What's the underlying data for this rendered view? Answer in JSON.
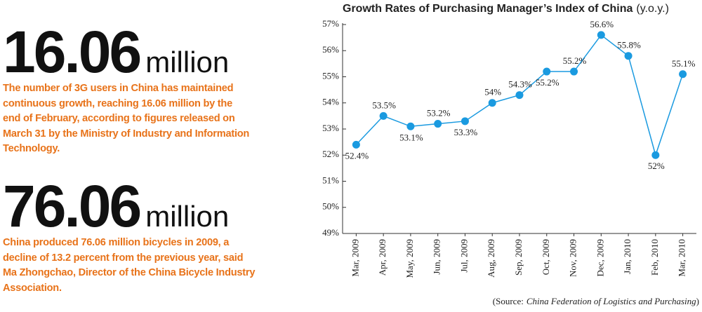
{
  "stats": [
    {
      "number": "16.06",
      "unit": "million",
      "lines": [
        "The number of 3G users in China has maintained",
        "continuous growth, reaching 16.06 million by the",
        "end of February, according to figures released on",
        "March 31 by the Ministry of Industry and Information",
        "Technology."
      ]
    },
    {
      "number": "76.06",
      "unit": "million",
      "lines": [
        "China produced 76.06 million bicycles in 2009, a",
        "decline of 13.2 percent from the previous year, said",
        "Ma Zhongchao, Director of the China Bicycle Industry",
        "Association."
      ]
    }
  ],
  "chart_data": {
    "type": "line",
    "title": "Growth Rates of Purchasing Manager’s Index of China",
    "subtitle": "(y.o.y.)",
    "categories": [
      "Mar, 2009",
      "Apr, 2009",
      "May, 2009",
      "Jun, 2009",
      "Jul, 2009",
      "Aug, 2009",
      "Sep, 2009",
      "Oct, 2009",
      "Nov, 2009",
      "Dec, 2009",
      "Jan, 2010",
      "Feb, 2010",
      "Mar, 2010"
    ],
    "values": [
      52.4,
      53.5,
      53.1,
      53.2,
      53.3,
      54,
      54.3,
      55.2,
      55.2,
      56.6,
      55.8,
      52,
      55.1
    ],
    "value_labels": [
      "52.4%",
      "53.5%",
      "53.1%",
      "53.2%",
      "53.3%",
      "54%",
      "54.3%",
      "55.2%",
      "55.2%",
      "56.6%",
      "55.8%",
      "52%",
      "55.1%"
    ],
    "color": "#1a9ae0",
    "ylim": [
      49,
      57
    ],
    "yticks": [
      {
        "value": 49,
        "label": "49%"
      },
      {
        "value": 50,
        "label": "50%"
      },
      {
        "value": 51,
        "label": "51%"
      },
      {
        "value": 52,
        "label": "52%"
      },
      {
        "value": 53,
        "label": "53%"
      },
      {
        "value": 54,
        "label": "54%"
      },
      {
        "value": 55,
        "label": "55%"
      },
      {
        "value": 56,
        "label": "56%"
      },
      {
        "value": 57,
        "label": "57%"
      }
    ],
    "grid": false,
    "source": {
      "label": "(Source:",
      "name": "China Federation of Logistics and Purchasing",
      "close": ")"
    }
  }
}
